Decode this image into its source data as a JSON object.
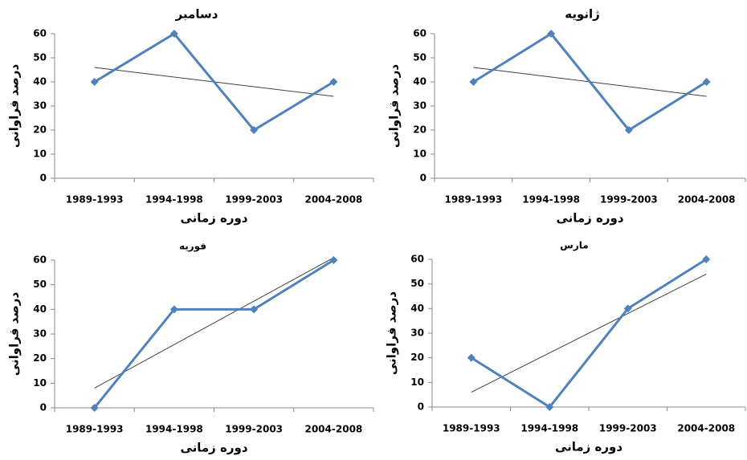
{
  "chart_data": [
    {
      "type": "line",
      "title": "دسامبر",
      "xlabel": "دوره زمانی",
      "ylabel": "درصد فراوانی",
      "categories": [
        "1989-1993",
        "1994-1998",
        "1999-2003",
        "2004-2008"
      ],
      "series": [
        {
          "color": "#4f81bd",
          "values": [
            40,
            60,
            20,
            40
          ]
        }
      ],
      "trend": {
        "color": "#404040",
        "values": [
          46,
          34
        ]
      },
      "ylim": [
        0,
        60
      ],
      "yticks": [
        0,
        10,
        20,
        30,
        40,
        50,
        60
      ]
    },
    {
      "type": "line",
      "title": "ژانویه",
      "xlabel": "دوره زمانی",
      "ylabel": "درصد فراوانی",
      "categories": [
        "1989-1993",
        "1994-1998",
        "1999-2003",
        "2004-2008"
      ],
      "series": [
        {
          "color": "#4f81bd",
          "values": [
            40,
            60,
            20,
            40
          ]
        }
      ],
      "trend": {
        "color": "#404040",
        "values": [
          46,
          34
        ]
      },
      "ylim": [
        0,
        60
      ],
      "yticks": [
        0,
        10,
        20,
        30,
        40,
        50,
        60
      ]
    },
    {
      "type": "line",
      "title": "فوریه",
      "xlabel": "دوره زمانی",
      "ylabel": "درصد فراوانی",
      "categories": [
        "1989-1993",
        "1994-1998",
        "1999-2003",
        "2004-2008"
      ],
      "series": [
        {
          "color": "#4f81bd",
          "values": [
            0,
            40,
            40,
            60
          ]
        }
      ],
      "trend": {
        "color": "#404040",
        "values": [
          8,
          61
        ]
      },
      "ylim": [
        0,
        60
      ],
      "yticks": [
        0,
        10,
        20,
        30,
        40,
        50,
        60
      ]
    },
    {
      "type": "line",
      "title": "مارس",
      "xlabel": "دوره زمانی",
      "ylabel": "درصد فراوانی",
      "categories": [
        "1989-1993",
        "1994-1998",
        "1999-2003",
        "2004-2008"
      ],
      "series": [
        {
          "color": "#4f81bd",
          "values": [
            20,
            0,
            40,
            60
          ]
        }
      ],
      "trend": {
        "color": "#404040",
        "values": [
          6,
          54
        ]
      },
      "ylim": [
        0,
        60
      ],
      "yticks": [
        0,
        10,
        20,
        30,
        40,
        50,
        60
      ]
    }
  ]
}
